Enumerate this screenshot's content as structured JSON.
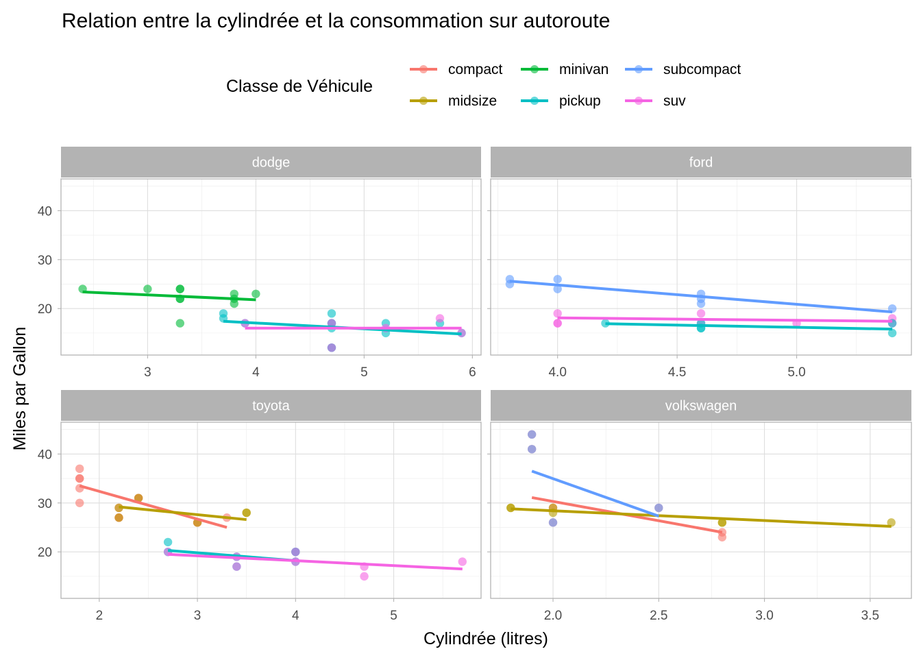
{
  "chart_data": {
    "type": "scatter",
    "title": "Relation entre la cylindrée et la consommation sur autoroute",
    "xlabel": "Cylindrée (litres)",
    "ylabel": "Miles par Gallon",
    "legend": {
      "title": "Classe de Véhicule",
      "position": "top",
      "entries": [
        {
          "name": "compact",
          "color": "#F8766D"
        },
        {
          "name": "midsize",
          "color": "#B79F00"
        },
        {
          "name": "minivan",
          "color": "#00BA38"
        },
        {
          "name": "pickup",
          "color": "#00BFC4"
        },
        {
          "name": "subcompact",
          "color": "#619CFF"
        },
        {
          "name": "suv",
          "color": "#F564E3"
        }
      ]
    },
    "y_ticks": [
      20,
      30,
      40
    ],
    "ylim_top": [
      10.5,
      46.5
    ],
    "ylim_bottom": [
      10.5,
      46.5
    ],
    "grid": true,
    "point_alpha": 0.6,
    "panels": [
      {
        "name": "dodge",
        "xlim": [
          2.2,
          6.08
        ],
        "x_ticks": [
          3,
          4,
          5,
          6
        ],
        "x_tick_labels": [
          "3",
          "4",
          "5",
          "6"
        ],
        "series": [
          {
            "name": "minivan",
            "points": [
              [
                2.4,
                24
              ],
              [
                3.0,
                24
              ],
              [
                3.3,
                22
              ],
              [
                3.3,
                22
              ],
              [
                3.3,
                24
              ],
              [
                3.3,
                24
              ],
              [
                3.3,
                17
              ],
              [
                3.8,
                22
              ],
              [
                3.8,
                21
              ],
              [
                3.8,
                23
              ],
              [
                4.0,
                23
              ]
            ],
            "fit": [
              [
                2.4,
                23.4
              ],
              [
                4.0,
                21.8
              ]
            ]
          },
          {
            "name": "pickup",
            "points": [
              [
                3.7,
                19
              ],
              [
                3.7,
                18
              ],
              [
                3.9,
                17
              ],
              [
                4.7,
                17
              ],
              [
                4.7,
                17
              ],
              [
                4.7,
                19
              ],
              [
                4.7,
                12
              ],
              [
                4.7,
                16
              ],
              [
                4.7,
                12
              ],
              [
                5.2,
                17
              ],
              [
                5.2,
                15
              ],
              [
                5.7,
                17
              ],
              [
                5.9,
                15
              ]
            ],
            "fit": [
              [
                3.7,
                17.4
              ],
              [
                5.9,
                14.8
              ]
            ]
          },
          {
            "name": "suv",
            "points": [
              [
                3.9,
                17
              ],
              [
                4.7,
                17
              ],
              [
                4.7,
                12
              ],
              [
                5.2,
                16
              ],
              [
                5.7,
                18
              ],
              [
                5.9,
                15
              ]
            ],
            "fit": [
              [
                3.9,
                16
              ],
              [
                5.9,
                16
              ]
            ]
          }
        ]
      },
      {
        "name": "ford",
        "xlim": [
          3.72,
          5.48
        ],
        "x_ticks": [
          4.0,
          4.5,
          5.0
        ],
        "x_tick_labels": [
          "4.0",
          "4.5",
          "5.0"
        ],
        "series": [
          {
            "name": "subcompact",
            "points": [
              [
                3.8,
                26
              ],
              [
                3.8,
                25
              ],
              [
                4.0,
                26
              ],
              [
                4.0,
                24
              ],
              [
                4.6,
                23
              ],
              [
                4.6,
                22
              ],
              [
                4.6,
                21
              ],
              [
                5.4,
                20
              ]
            ],
            "fit": [
              [
                3.8,
                25.6
              ],
              [
                5.4,
                19.3
              ]
            ]
          },
          {
            "name": "suv",
            "points": [
              [
                4.0,
                19
              ],
              [
                4.0,
                17
              ],
              [
                4.0,
                17
              ],
              [
                4.6,
                19
              ],
              [
                4.6,
                17
              ],
              [
                5.0,
                17
              ],
              [
                5.4,
                17
              ],
              [
                5.4,
                18
              ]
            ],
            "fit": [
              [
                4.0,
                18.1
              ],
              [
                5.4,
                17.4
              ]
            ]
          },
          {
            "name": "pickup",
            "points": [
              [
                4.2,
                17
              ],
              [
                4.6,
                17
              ],
              [
                4.6,
                16
              ],
              [
                4.6,
                16
              ],
              [
                5.4,
                17
              ],
              [
                5.4,
                15
              ]
            ],
            "fit": [
              [
                4.2,
                16.9
              ],
              [
                5.4,
                15.8
              ]
            ]
          }
        ]
      },
      {
        "name": "toyota",
        "xlim": [
          1.61,
          5.89
        ],
        "x_ticks": [
          2,
          3,
          4,
          5
        ],
        "x_tick_labels": [
          "2",
          "3",
          "4",
          "5"
        ],
        "series": [
          {
            "name": "compact",
            "points": [
              [
                1.8,
                37
              ],
              [
                1.8,
                35
              ],
              [
                1.8,
                35
              ],
              [
                1.8,
                33
              ],
              [
                1.8,
                30
              ],
              [
                2.2,
                29
              ],
              [
                2.2,
                27
              ],
              [
                2.2,
                27
              ],
              [
                2.4,
                31
              ],
              [
                2.4,
                31
              ],
              [
                3.0,
                26
              ],
              [
                3.0,
                26
              ],
              [
                3.3,
                27
              ]
            ],
            "fit": [
              [
                1.8,
                33.5
              ],
              [
                3.3,
                25
              ]
            ]
          },
          {
            "name": "midsize",
            "points": [
              [
                2.2,
                29
              ],
              [
                2.2,
                27
              ],
              [
                2.4,
                31
              ],
              [
                3.0,
                26
              ],
              [
                3.5,
                28
              ],
              [
                3.5,
                28
              ]
            ],
            "fit": [
              [
                2.2,
                29.2
              ],
              [
                3.5,
                26.6
              ]
            ]
          },
          {
            "name": "pickup",
            "points": [
              [
                2.7,
                22
              ],
              [
                2.7,
                20
              ],
              [
                3.4,
                19
              ],
              [
                3.4,
                17
              ],
              [
                4.0,
                20
              ],
              [
                4.0,
                18
              ],
              [
                4.0,
                20
              ]
            ],
            "fit": [
              [
                2.7,
                20.3
              ],
              [
                4.0,
                18.2
              ]
            ]
          },
          {
            "name": "suv",
            "points": [
              [
                2.7,
                20
              ],
              [
                3.4,
                19
              ],
              [
                3.4,
                17
              ],
              [
                4.0,
                20
              ],
              [
                4.0,
                18
              ],
              [
                4.7,
                17
              ],
              [
                4.7,
                15
              ],
              [
                5.7,
                18
              ]
            ],
            "fit": [
              [
                2.7,
                19.5
              ],
              [
                5.7,
                16.5
              ]
            ]
          }
        ]
      },
      {
        "name": "volkswagen",
        "xlim": [
          1.705,
          3.695
        ],
        "x_ticks": [
          2.0,
          2.5,
          3.0,
          3.5
        ],
        "x_tick_labels": [
          "2.0",
          "2.5",
          "3.0",
          "3.5"
        ],
        "series": [
          {
            "name": "compact",
            "points": [
              [
                1.9,
                44
              ],
              [
                1.9,
                41
              ],
              [
                2.0,
                29
              ],
              [
                2.0,
                26
              ],
              [
                2.5,
                29
              ],
              [
                2.8,
                24
              ],
              [
                2.8,
                23
              ]
            ],
            "fit": [
              [
                1.9,
                31.1
              ],
              [
                2.8,
                24
              ]
            ]
          },
          {
            "name": "midsize",
            "points": [
              [
                1.8,
                29
              ],
              [
                1.8,
                29
              ],
              [
                2.0,
                29
              ],
              [
                2.0,
                28
              ],
              [
                2.8,
                26
              ],
              [
                2.8,
                26
              ],
              [
                3.6,
                26
              ]
            ],
            "fit": [
              [
                1.8,
                28.8
              ],
              [
                3.6,
                25.2
              ]
            ]
          },
          {
            "name": "subcompact",
            "points": [
              [
                1.9,
                44
              ],
              [
                1.9,
                41
              ],
              [
                2.0,
                26
              ],
              [
                2.5,
                29
              ]
            ],
            "fit": [
              [
                1.9,
                36.5
              ],
              [
                2.5,
                27.3
              ]
            ]
          }
        ]
      }
    ]
  }
}
